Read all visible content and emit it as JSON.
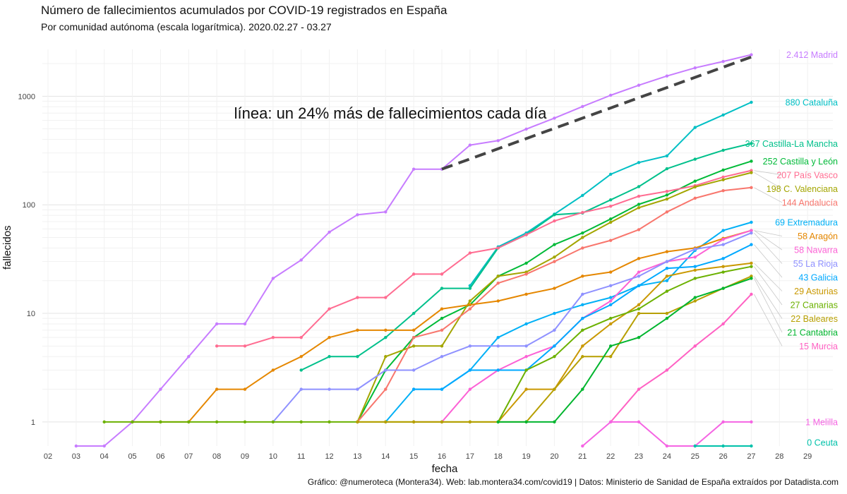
{
  "title": "Número de fallecimientos acumulados por COVID-19 registrados en España",
  "subtitle": "Por comunidad autónoma (escala logarítmica). 2020.02.27 - 03.27",
  "caption": "Gráfico: @numeroteca (Montera34). Web: lab.montera34.com/covid19 | Datos: Ministerio de Sanidad de España extraídos por Datadista.com",
  "chart_data": {
    "type": "line",
    "title": "Número de fallecimientos acumulados por COVID-19 registrados en España",
    "subtitle": "Por comunidad autónoma (escala logarítmica). 2020.02.27 - 03.27",
    "xlabel": "fecha",
    "ylabel": "fallecidos",
    "y_scale": "log",
    "ylim": [
      0.6,
      2700
    ],
    "y_ticks": [
      1,
      10,
      100,
      1000
    ],
    "y_tick_labels": [
      "1",
      "10",
      "100",
      "1000"
    ],
    "x_range": [
      2,
      29
    ],
    "x_ticks": [
      2,
      3,
      4,
      5,
      6,
      7,
      8,
      9,
      10,
      11,
      12,
      13,
      14,
      15,
      16,
      17,
      18,
      19,
      20,
      21,
      22,
      23,
      24,
      25,
      26,
      27,
      28,
      29
    ],
    "x_tick_labels": [
      "02",
      "03",
      "04",
      "05",
      "06",
      "07",
      "08",
      "09",
      "10",
      "11",
      "12",
      "13",
      "14",
      "15",
      "16",
      "17",
      "18",
      "19",
      "20",
      "21",
      "22",
      "23",
      "24",
      "25",
      "26",
      "27",
      "28",
      "29"
    ],
    "grid": true,
    "annotation": "línea: un 24% más de fallecimientos cada día",
    "trend_line": {
      "x": [
        16,
        27
      ],
      "y": [
        213,
        2300
      ],
      "style": "dashed",
      "color": "#444444"
    },
    "series": [
      {
        "name": "Madrid",
        "color": "#C77CFF",
        "end_label": "2.412 Madrid",
        "x": [
          3,
          4,
          5,
          6,
          7,
          8,
          9,
          10,
          11,
          12,
          13,
          14,
          15,
          16,
          17,
          18,
          19,
          20,
          21,
          22,
          23,
          24,
          25,
          26,
          27
        ],
        "y": [
          0,
          0,
          1,
          2,
          4,
          8,
          8,
          21,
          31,
          56,
          81,
          86,
          213,
          213,
          355,
          390,
          498,
          628,
          804,
          1021,
          1263,
          1535,
          1825,
          2090,
          2412
        ]
      },
      {
        "name": "Cataluña",
        "color": "#00BFC4",
        "end_label": "880 Cataluña",
        "x": [
          17,
          18,
          19,
          20,
          21,
          22,
          23,
          24,
          25,
          26,
          27
        ],
        "y": [
          18,
          41,
          55,
          82,
          122,
          191,
          245,
          282,
          516,
          672,
          880
        ]
      },
      {
        "name": "Castilla-La Mancha",
        "color": "#00C08B",
        "end_label": "367 Castilla-La Mancha",
        "x": [
          11,
          12,
          13,
          14,
          15,
          16,
          17,
          18,
          19,
          20,
          21,
          22,
          23,
          24,
          25,
          26,
          27
        ],
        "y": [
          3,
          4,
          4,
          6,
          10,
          17,
          17,
          40,
          53,
          81,
          84,
          111,
          147,
          215,
          263,
          318,
          367
        ]
      },
      {
        "name": "Castilla y León",
        "color": "#00BA38",
        "end_label": "252 Castilla y León",
        "x": [
          13,
          14,
          15,
          16,
          17,
          18,
          19,
          20,
          21,
          22,
          23,
          24,
          25,
          26,
          27
        ],
        "y": [
          1,
          3,
          6,
          9,
          12,
          22,
          29,
          43,
          55,
          74,
          101,
          123,
          165,
          209,
          252
        ]
      },
      {
        "name": "País Vasco",
        "color": "#FF6C91",
        "end_label": "207 País Vasco",
        "x": [
          8,
          9,
          10,
          11,
          12,
          13,
          14,
          15,
          16,
          17,
          18,
          19,
          20,
          21,
          22,
          23,
          24,
          25,
          26,
          27
        ],
        "y": [
          5,
          5,
          6,
          6,
          11,
          14,
          14,
          23,
          23,
          36,
          40,
          53,
          71,
          85,
          97,
          120,
          133,
          150,
          180,
          207
        ]
      },
      {
        "name": "C. Valenciana",
        "color": "#A3A500",
        "end_label": "198 C. Valenciana",
        "x": [
          13,
          14,
          15,
          16,
          17,
          18,
          19,
          20,
          21,
          22,
          23,
          24,
          25,
          26,
          27
        ],
        "y": [
          1,
          4,
          5,
          5,
          13,
          22,
          24,
          33,
          50,
          69,
          94,
          113,
          146,
          170,
          198
        ]
      },
      {
        "name": "Andalucía",
        "color": "#F8766D",
        "end_label": "144 Andalucía",
        "x": [
          13,
          14,
          15,
          16,
          17,
          18,
          19,
          20,
          21,
          22,
          23,
          24,
          25,
          26,
          27
        ],
        "y": [
          1,
          2,
          6,
          7,
          11,
          19,
          23,
          30,
          40,
          47,
          59,
          86,
          115,
          135,
          144
        ]
      },
      {
        "name": "Extremadura",
        "color": "#00B0F6",
        "end_label": "69 Extremadura",
        "x": [
          14,
          15,
          16,
          17,
          18,
          19,
          20,
          21,
          22,
          23,
          24,
          25,
          26,
          27
        ],
        "y": [
          1,
          2,
          2,
          3,
          6,
          8,
          10,
          12,
          14,
          18,
          20,
          38,
          58,
          69
        ]
      },
      {
        "name": "Aragón",
        "color": "#E58700",
        "end_label": "58 Aragón",
        "x": [
          5,
          6,
          7,
          8,
          9,
          10,
          11,
          12,
          13,
          14,
          15,
          16,
          17,
          18,
          19,
          20,
          21,
          22,
          23,
          24,
          25,
          26,
          27
        ],
        "y": [
          1,
          1,
          1,
          2,
          2,
          3,
          4,
          6,
          7,
          7,
          7,
          11,
          12,
          13,
          15,
          17,
          22,
          24,
          32,
          37,
          40,
          49,
          58
        ]
      },
      {
        "name": "Navarra",
        "color": "#FC61D5",
        "end_label": "58 Navarra",
        "x": [
          15,
          16,
          17,
          18,
          19,
          20,
          21,
          22,
          23,
          24,
          25,
          26,
          27
        ],
        "y": [
          1,
          1,
          2,
          3,
          4,
          5,
          9,
          13,
          24,
          30,
          33,
          48,
          58
        ]
      },
      {
        "name": "La Rioja",
        "color": "#8F91FF",
        "end_label": "55 La Rioja",
        "x": [
          10,
          11,
          12,
          13,
          14,
          15,
          16,
          17,
          18,
          19,
          20,
          21,
          22,
          23,
          24,
          25,
          26,
          27
        ],
        "y": [
          1,
          2,
          2,
          2,
          3,
          3,
          4,
          5,
          5,
          5,
          7,
          15,
          18,
          22,
          30,
          39,
          43,
          55
        ]
      },
      {
        "name": "Galicia",
        "color": "#00A9FF",
        "end_label": "43 Galicia",
        "x": [
          15,
          16,
          17,
          18,
          19,
          20,
          21,
          22,
          23,
          24,
          25,
          26,
          27
        ],
        "y": [
          2,
          2,
          3,
          3,
          3,
          5,
          9,
          12,
          18,
          26,
          27,
          32,
          43
        ]
      },
      {
        "name": "Asturias",
        "color": "#C99800",
        "end_label": "29 Asturias",
        "x": [
          18,
          19,
          20,
          21,
          22,
          23,
          24,
          25,
          26,
          27
        ],
        "y": [
          1,
          2,
          2,
          5,
          8,
          12,
          22,
          25,
          27,
          29
        ]
      },
      {
        "name": "Canarias",
        "color": "#6BB100",
        "end_label": "27 Canarias",
        "x": [
          4,
          5,
          6,
          7,
          8,
          9,
          10,
          11,
          12,
          13,
          14,
          15,
          16,
          17,
          18,
          19,
          20,
          21,
          22,
          23,
          24,
          25,
          26,
          27
        ],
        "y": [
          1,
          1,
          1,
          1,
          1,
          1,
          1,
          1,
          1,
          1,
          1,
          1,
          1,
          1,
          1,
          3,
          4,
          7,
          9,
          11,
          16,
          21,
          24,
          27
        ]
      },
      {
        "name": "Baleares",
        "color": "#B79F00",
        "end_label": "22 Baleares",
        "x": [
          13,
          14,
          15,
          16,
          17,
          18,
          19,
          20,
          21,
          22,
          23,
          24,
          25,
          26,
          27
        ],
        "y": [
          1,
          1,
          1,
          1,
          1,
          1,
          1,
          2,
          4,
          4,
          10,
          10,
          13,
          17,
          22
        ]
      },
      {
        "name": "Cantabria",
        "color": "#00B52E",
        "end_label": "21 Cantabria",
        "x": [
          18,
          19,
          20,
          21,
          22,
          23,
          24,
          25,
          26,
          27
        ],
        "y": [
          1,
          1,
          1,
          2,
          5,
          6,
          9,
          14,
          17,
          21
        ]
      },
      {
        "name": "Murcia",
        "color": "#FF61C3",
        "end_label": "15 Murcia",
        "x": [
          22,
          23,
          24,
          25,
          26,
          27
        ],
        "y": [
          1,
          2,
          3,
          5,
          8,
          15
        ]
      },
      {
        "name": "Melilla",
        "color": "#F564E3",
        "end_label": "1 Melilla",
        "x": [
          21,
          22,
          23,
          24,
          25,
          26,
          27
        ],
        "y": [
          0,
          1,
          1,
          0,
          0,
          1,
          1
        ]
      },
      {
        "name": "Ceuta",
        "color": "#00C1AA",
        "end_label": "0 Ceuta",
        "x": [
          25,
          26,
          27
        ],
        "y": [
          0,
          0,
          0
        ]
      }
    ]
  }
}
